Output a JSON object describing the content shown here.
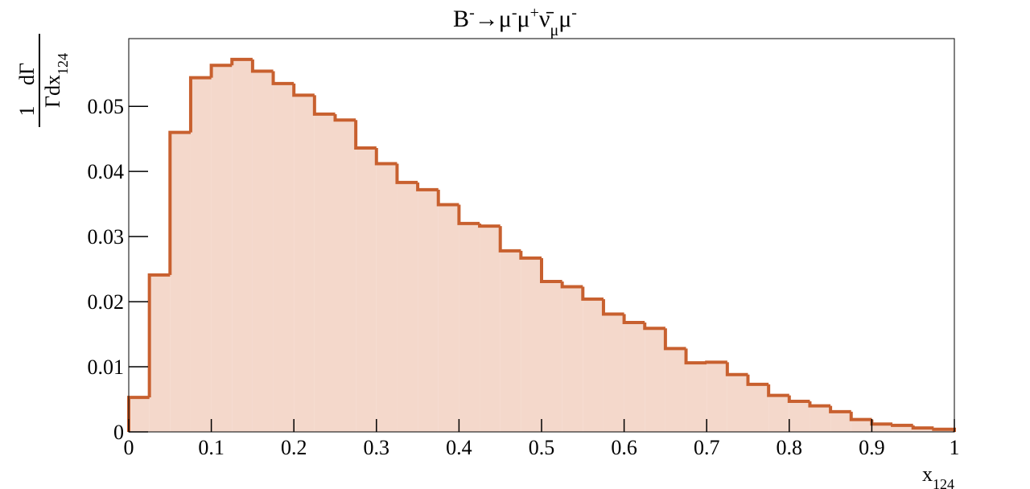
{
  "chart_data": {
    "type": "histogram",
    "title": [
      "B",
      "-",
      "→μ",
      "-",
      "μ",
      "+",
      "ν̄",
      "μ",
      "μ",
      "-"
    ],
    "ylabel": [
      "1",
      "dΓ",
      "Γdx",
      "124"
    ],
    "xlabel": [
      "x",
      "124"
    ],
    "bins": [
      0,
      0.025,
      0.05,
      0.075,
      0.1,
      0.125,
      0.15,
      0.175,
      0.2,
      0.225,
      0.25,
      0.275,
      0.3,
      0.325,
      0.35,
      0.375,
      0.4,
      0.425,
      0.45,
      0.475,
      0.5,
      0.525,
      0.55,
      0.575,
      0.6,
      0.625,
      0.65,
      0.675,
      0.7,
      0.725,
      0.75,
      0.775,
      0.8,
      0.825,
      0.85,
      0.875,
      0.9,
      0.925,
      0.95,
      0.975,
      1
    ],
    "values": [
      0.0053,
      0.0241,
      0.046,
      0.0544,
      0.0563,
      0.0572,
      0.0554,
      0.0535,
      0.0517,
      0.0488,
      0.0479,
      0.0436,
      0.0412,
      0.0383,
      0.0372,
      0.0349,
      0.032,
      0.0316,
      0.0278,
      0.0267,
      0.0231,
      0.0223,
      0.0204,
      0.0181,
      0.0168,
      0.0159,
      0.0128,
      0.0106,
      0.0107,
      0.0088,
      0.0073,
      0.0056,
      0.0047,
      0.004,
      0.0031,
      0.0019,
      0.0012,
      0.001,
      0.0006,
      0.0004
    ],
    "xlim": [
      0,
      1
    ],
    "xticks": [
      0,
      0.1,
      0.2,
      0.3,
      0.4,
      0.5,
      0.6,
      0.7,
      0.8,
      0.9,
      1
    ],
    "ylim": [
      0,
      0.0604
    ],
    "yticks": [
      0,
      0.01,
      0.02,
      0.03,
      0.04,
      0.05
    ],
    "color": "#c8602f",
    "fill": "#f4d8cb"
  }
}
